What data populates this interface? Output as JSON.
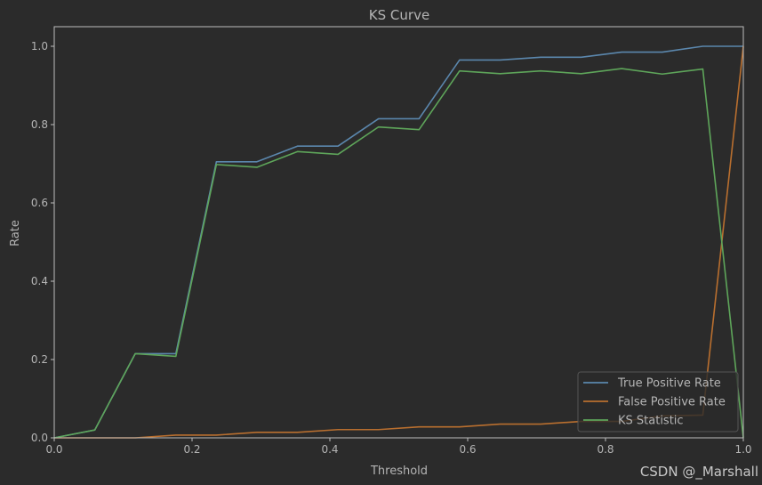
{
  "colors": {
    "background": "#2b2b2b",
    "axes": "#bdbdbd",
    "text": "#b4b4b4"
  },
  "watermark": "CSDN @_Marshall",
  "chart_data": {
    "type": "line",
    "title": "KS Curve",
    "xlabel": "Threshold",
    "ylabel": "Rate",
    "xlim": [
      0,
      1
    ],
    "ylim": [
      0,
      1.05
    ],
    "x_ticks": [
      "0.0",
      "0.2",
      "0.4",
      "0.6",
      "0.8",
      "1.0"
    ],
    "y_ticks": [
      "0.0",
      "0.2",
      "0.4",
      "0.6",
      "0.8",
      "1.0"
    ],
    "grid": false,
    "legend_position": "lower-right",
    "x": [
      0.0,
      0.0588,
      0.1176,
      0.1765,
      0.2353,
      0.2941,
      0.3529,
      0.4118,
      0.4706,
      0.5294,
      0.5882,
      0.6471,
      0.7059,
      0.7647,
      0.8235,
      0.8824,
      0.9412,
      1.0
    ],
    "series": [
      {
        "name": "True Positive Rate",
        "color": "#5b87ad",
        "values": [
          0.0,
          0.02,
          0.215,
          0.215,
          0.705,
          0.705,
          0.745,
          0.745,
          0.815,
          0.815,
          0.965,
          0.965,
          0.972,
          0.972,
          0.985,
          0.985,
          1.0,
          1.0
        ]
      },
      {
        "name": "False Positive Rate",
        "color": "#b96f2f",
        "values": [
          0.0,
          0.0,
          0.0,
          0.007,
          0.007,
          0.014,
          0.014,
          0.021,
          0.021,
          0.028,
          0.028,
          0.035,
          0.035,
          0.042,
          0.042,
          0.056,
          0.058,
          1.0
        ]
      },
      {
        "name": "KS Statistic",
        "color": "#5ea55a",
        "values": [
          0.0,
          0.02,
          0.215,
          0.208,
          0.698,
          0.691,
          0.731,
          0.724,
          0.794,
          0.787,
          0.937,
          0.93,
          0.937,
          0.93,
          0.943,
          0.929,
          0.942,
          0.0
        ]
      }
    ]
  }
}
